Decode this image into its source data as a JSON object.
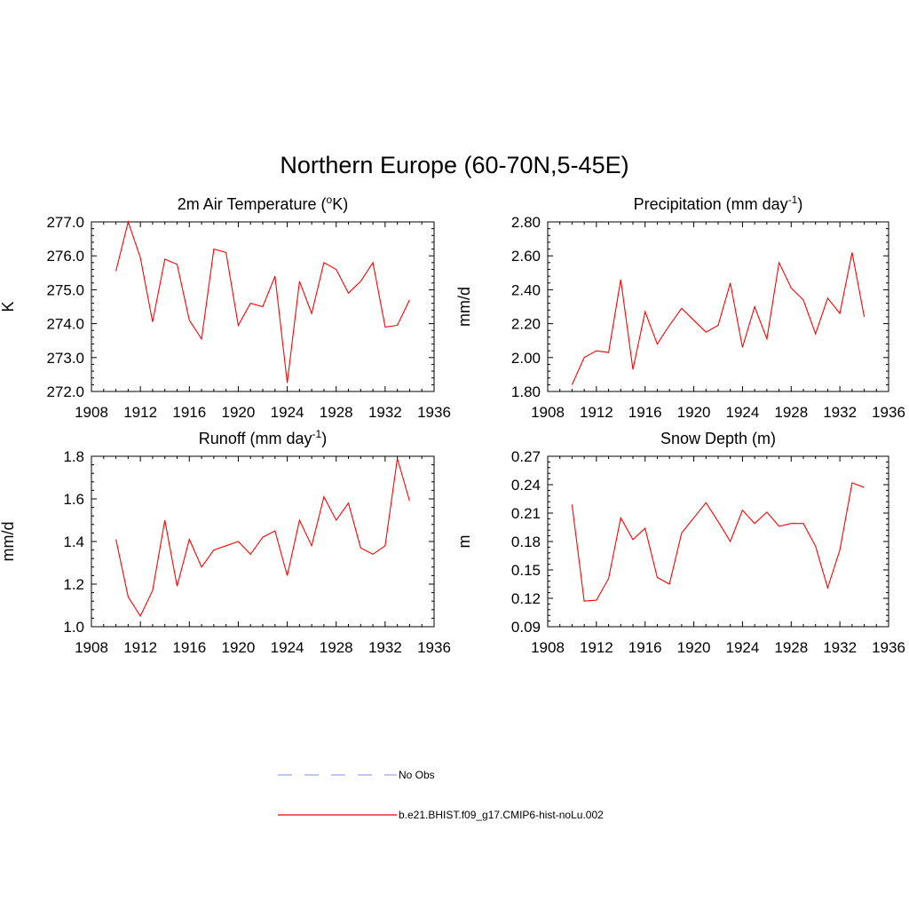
{
  "title": "Northern Europe (60-70N,5-45E)",
  "colors": {
    "model": "#ff0000",
    "obs": "#a0a0f0",
    "axis": "#000000"
  },
  "legend": [
    {
      "label": "No Obs",
      "style": "dashed",
      "color": "#a0a0f0"
    },
    {
      "label": "b.e21.BHIST.f09_g17.CMIP6-hist-noLu.002",
      "style": "solid",
      "color": "#ff0000"
    }
  ],
  "chart_data": [
    {
      "type": "line",
      "title": {
        "main": "2m Air Temperature (",
        "sup": "o",
        "rest": "K)"
      },
      "xlabel": "",
      "ylabel": "K",
      "xlim": [
        1908,
        1936
      ],
      "xticks": [
        "1908",
        "1912",
        "1916",
        "1920",
        "1924",
        "1928",
        "1932",
        "1936"
      ],
      "ylim": [
        272.0,
        277.0
      ],
      "yticks": [
        "272.0",
        "273.0",
        "274.0",
        "275.0",
        "276.0",
        "277.0"
      ],
      "x": [
        1910,
        1911,
        1912,
        1913,
        1914,
        1915,
        1916,
        1917,
        1918,
        1919,
        1920,
        1921,
        1922,
        1923,
        1924,
        1925,
        1926,
        1927,
        1928,
        1929,
        1930,
        1931,
        1932,
        1933,
        1934
      ],
      "series": [
        {
          "values": [
            275.55,
            277.0,
            275.95,
            274.05,
            275.9,
            275.75,
            274.1,
            273.55,
            276.2,
            276.1,
            273.95,
            274.6,
            274.5,
            275.4,
            272.25,
            275.25,
            274.3,
            275.8,
            275.6,
            274.9,
            275.25,
            275.8,
            273.9,
            273.95,
            274.7
          ]
        }
      ]
    },
    {
      "type": "line",
      "title": {
        "main": "Precipitation (mm day",
        "sup": "-1",
        "rest": ")"
      },
      "xlabel": "",
      "ylabel": "mm/d",
      "xlim": [
        1908,
        1936
      ],
      "xticks": [
        "1908",
        "1912",
        "1916",
        "1920",
        "1924",
        "1928",
        "1932",
        "1936"
      ],
      "ylim": [
        1.8,
        2.8
      ],
      "yticks": [
        "1.80",
        "2.00",
        "2.20",
        "2.40",
        "2.60",
        "2.80"
      ],
      "x": [
        1910,
        1911,
        1912,
        1913,
        1914,
        1915,
        1916,
        1917,
        1918,
        1919,
        1920,
        1921,
        1922,
        1923,
        1924,
        1925,
        1926,
        1927,
        1928,
        1929,
        1930,
        1931,
        1932,
        1933,
        1934
      ],
      "series": [
        {
          "values": [
            1.84,
            2.0,
            2.04,
            2.03,
            2.46,
            1.93,
            2.27,
            2.08,
            2.19,
            2.29,
            2.22,
            2.15,
            2.19,
            2.44,
            2.06,
            2.3,
            2.11,
            2.56,
            2.41,
            2.34,
            2.14,
            2.35,
            2.26,
            2.62,
            2.24
          ]
        }
      ]
    },
    {
      "type": "line",
      "title": {
        "main": "Runoff (mm day",
        "sup": "-1",
        "rest": ")"
      },
      "xlabel": "",
      "ylabel": "mm/d",
      "xlim": [
        1908,
        1936
      ],
      "xticks": [
        "1908",
        "1912",
        "1916",
        "1920",
        "1924",
        "1928",
        "1932",
        "1936"
      ],
      "ylim": [
        1.0,
        1.8
      ],
      "yticks": [
        "1.0",
        "1.2",
        "1.4",
        "1.6",
        "1.8"
      ],
      "x": [
        1910,
        1911,
        1912,
        1913,
        1914,
        1915,
        1916,
        1917,
        1918,
        1919,
        1920,
        1921,
        1922,
        1923,
        1924,
        1925,
        1926,
        1927,
        1928,
        1929,
        1930,
        1931,
        1932,
        1933,
        1934
      ],
      "series": [
        {
          "values": [
            1.41,
            1.14,
            1.05,
            1.17,
            1.5,
            1.19,
            1.41,
            1.28,
            1.36,
            1.38,
            1.4,
            1.34,
            1.42,
            1.45,
            1.24,
            1.5,
            1.38,
            1.61,
            1.5,
            1.58,
            1.37,
            1.34,
            1.38,
            1.79,
            1.59
          ]
        }
      ]
    },
    {
      "type": "line",
      "title": {
        "main": "Snow Depth (m)",
        "sup": "",
        "rest": ""
      },
      "xlabel": "",
      "ylabel": "m",
      "xlim": [
        1908,
        1936
      ],
      "xticks": [
        "1908",
        "1912",
        "1916",
        "1920",
        "1924",
        "1928",
        "1932",
        "1936"
      ],
      "ylim": [
        0.09,
        0.27
      ],
      "yticks": [
        "0.09",
        "0.12",
        "0.15",
        "0.18",
        "0.21",
        "0.24",
        "0.27"
      ],
      "x": [
        1910,
        1911,
        1912,
        1913,
        1914,
        1915,
        1916,
        1917,
        1918,
        1919,
        1920,
        1921,
        1922,
        1923,
        1924,
        1925,
        1926,
        1927,
        1928,
        1929,
        1930,
        1931,
        1932,
        1933,
        1934
      ],
      "series": [
        {
          "values": [
            0.219,
            0.117,
            0.118,
            0.141,
            0.205,
            0.182,
            0.194,
            0.142,
            0.135,
            0.189,
            0.205,
            0.221,
            0.201,
            0.18,
            0.213,
            0.199,
            0.211,
            0.196,
            0.199,
            0.199,
            0.175,
            0.131,
            0.171,
            0.242,
            0.237
          ]
        }
      ]
    }
  ]
}
